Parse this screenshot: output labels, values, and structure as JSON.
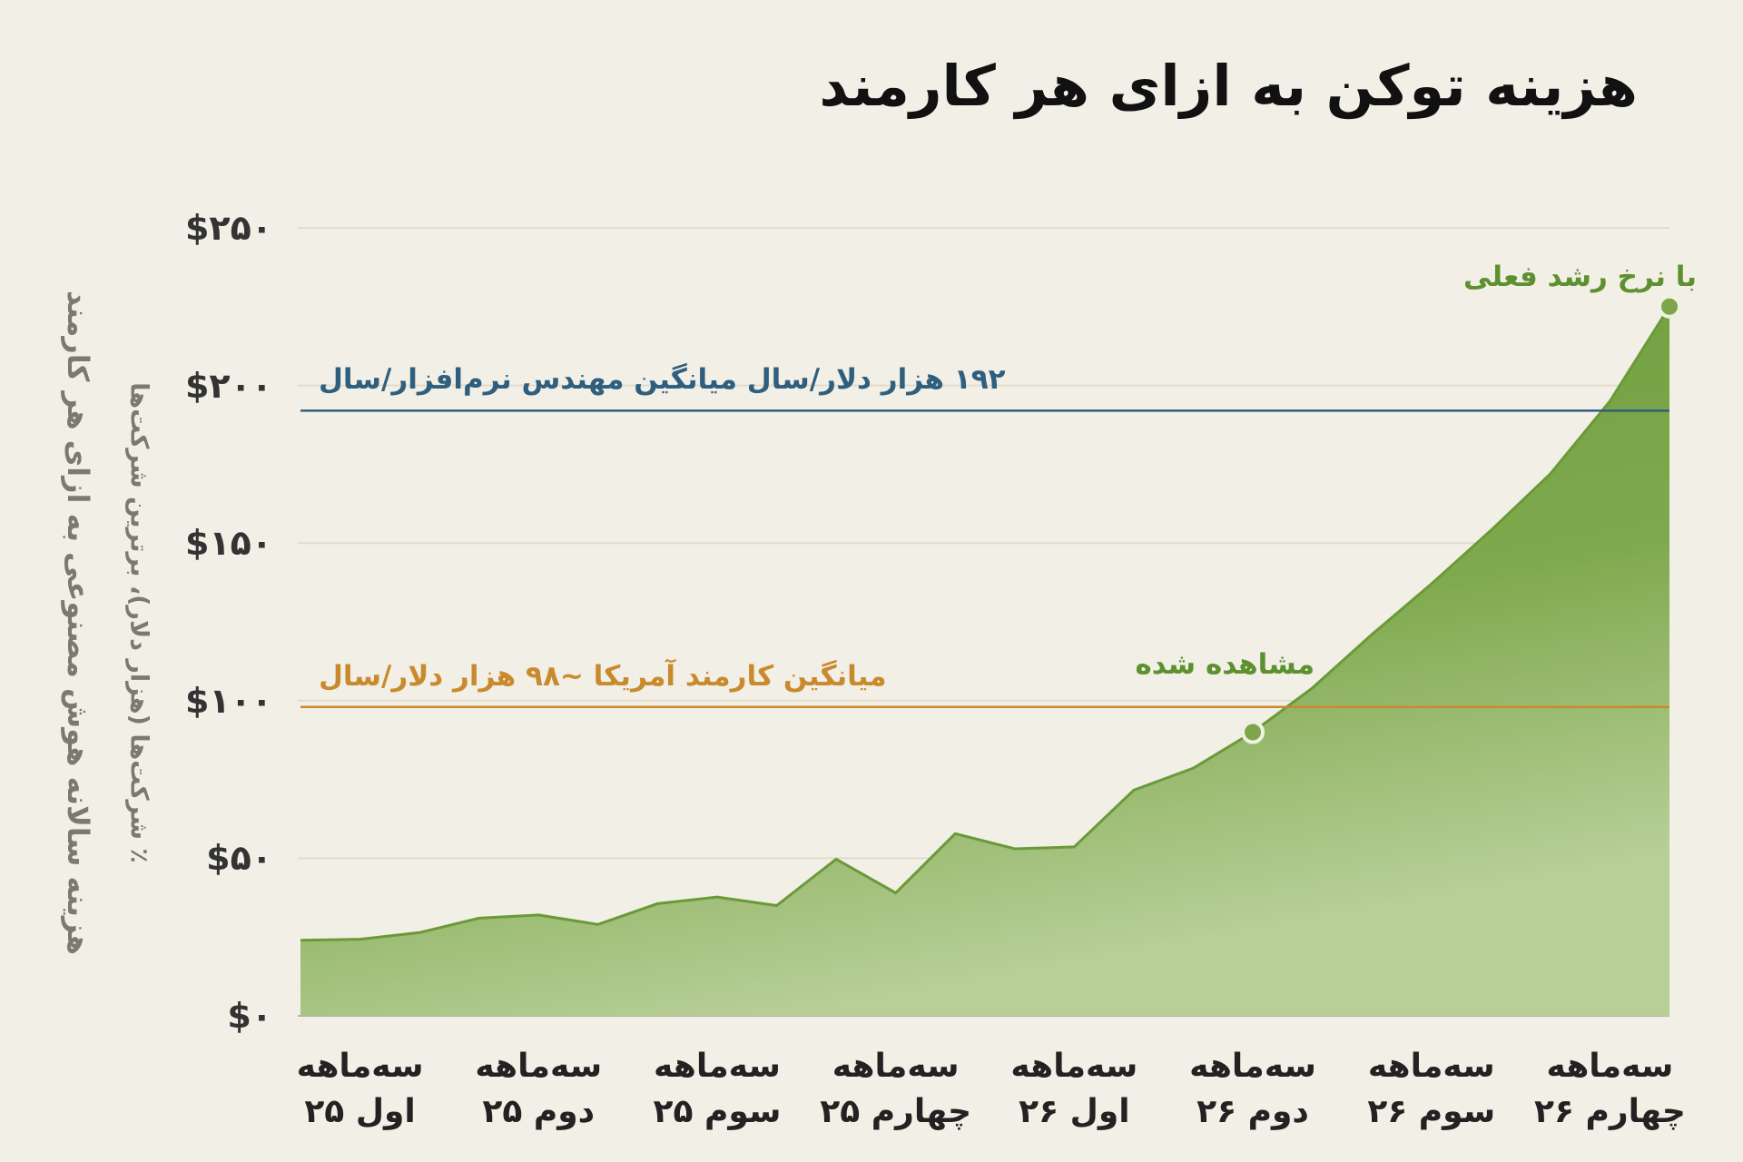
{
  "chart_data": {
    "type": "area",
    "title": "هزینه توکن به ازای هر کارمند",
    "ylabel": "هزینه سالانه هوش مصنوعی به ازای هر کارمند",
    "ylabel_note": "٪ شرکت‌ها (هزار دلار)، برترین شرکت‌ها",
    "categories": [
      null,
      "سه‌ماهه\nاول ۲۵",
      null,
      null,
      "سه‌ماهه\nدوم ۲۵",
      null,
      null,
      "سه‌ماهه\nسوم ۲۵",
      null,
      null,
      "سه‌ماهه\nچهارم ۲۵",
      null,
      null,
      "سه‌ماهه\nاول ۲۶",
      null,
      null,
      "سه‌ماهه\nدوم ۲۶",
      null,
      null,
      "سه‌ماهه\nسوم ۲۶",
      null,
      null,
      "سه‌ماهه\nچهارم ۲۶",
      null
    ],
    "series": [
      {
        "color": "#6a9a38",
        "values": [
          24,
          24.3,
          26.4,
          31,
          32,
          29,
          35.6,
          37.7,
          35,
          49.7,
          39,
          57.8,
          53,
          53.6,
          71.6,
          78.6,
          90,
          104,
          121,
          137,
          154,
          172,
          195,
          225
        ]
      }
    ],
    "ylim": [
      0,
      250
    ],
    "yticks": [
      {
        "value": 0,
        "label": "$۰"
      },
      {
        "value": 50,
        "label": "$۵۰"
      },
      {
        "value": 100,
        "label": "$۱۰۰"
      },
      {
        "value": 150,
        "label": "$۱۵۰"
      },
      {
        "value": 200,
        "label": "$۲۰۰"
      },
      {
        "value": 250,
        "label": "$۲۵۰"
      }
    ],
    "grid": true,
    "reference_lines": [
      {
        "value": 192,
        "label": "۱۹۲ هزار دلار/سال میانگین مهندس نرم‌افزار/سال",
        "color": "#2f5f7e"
      },
      {
        "value": 98,
        "label": "میانگین کارمند آمریکا ~۹۸ هزار دلار/سال",
        "color": "#c98a2e"
      }
    ],
    "annotations": [
      {
        "text": "مشاهده شده",
        "index": 16
      },
      {
        "text": "با نرخ رشد فعلی",
        "index": 23
      }
    ]
  }
}
